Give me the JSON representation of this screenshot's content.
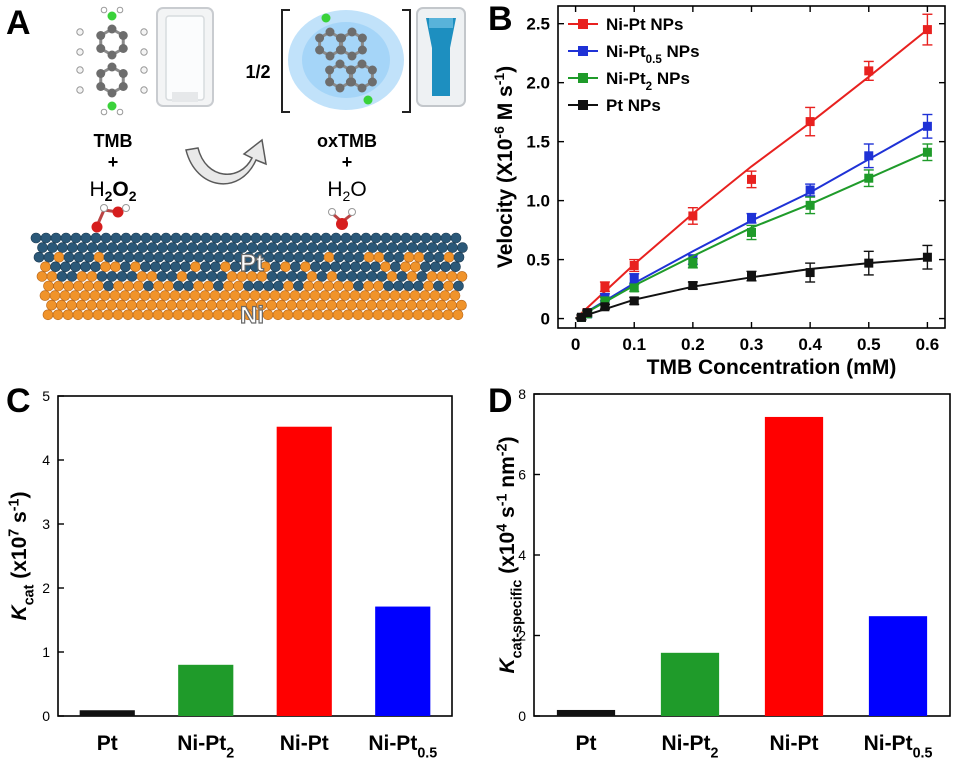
{
  "panels": {
    "A": "A",
    "B": "B",
    "C": "C",
    "D": "D"
  },
  "schematic": {
    "reactant1": "TMB",
    "plus1": "+",
    "reactant2_base": "H",
    "reactant2_sub1": "2",
    "reactant2_mid": "O",
    "reactant2_sub2": "2",
    "product_coef": "1/2",
    "product1": "oxTMB",
    "plus2": "+",
    "product2_base": "H",
    "product2_sub": "2",
    "product2_end": "O",
    "layer_top_label": "Pt",
    "layer_bottom_label": "Ni",
    "colors": {
      "pt_atom": "#2b5878",
      "ni_atom": "#f0932a",
      "glow": "#8ecbf5",
      "cuvette_blue": "#1d8fc0"
    }
  },
  "chart_data": [
    {
      "id": "B",
      "type": "line",
      "xlabel": "TMB Concentration (mM)",
      "ylabel_parts": {
        "a": "Velocity (X10",
        "sup1": "-6",
        "b": " M s",
        "sup2": "-1",
        "c": ")"
      },
      "xlim": [
        -0.03,
        0.63
      ],
      "ylim": [
        -0.08,
        2.65
      ],
      "xticks": [
        0,
        0.1,
        0.2,
        0.3,
        0.4,
        0.5,
        0.6
      ],
      "xtick_labels": [
        "0",
        "0.1",
        "0.2",
        "0.3",
        "0.4",
        "0.5",
        "0.6"
      ],
      "yticks": [
        0,
        0.5,
        1.0,
        1.5,
        2.0,
        2.5
      ],
      "ytick_labels": [
        "0",
        "0.5",
        "1.0",
        "1.5",
        "2.0",
        "2.5"
      ],
      "legend_position": "top-left",
      "series": [
        {
          "name": "Ni-Pt NPs",
          "label_parts": [
            {
              "t": "Ni-Pt NPs"
            }
          ],
          "color": "#e8211f",
          "x": [
            0.01,
            0.02,
            0.05,
            0.1,
            0.2,
            0.3,
            0.4,
            0.5,
            0.6
          ],
          "y": [
            0.01,
            0.05,
            0.27,
            0.45,
            0.87,
            1.18,
            1.67,
            2.1,
            2.45
          ],
          "err": [
            0.02,
            0.03,
            0.04,
            0.05,
            0.07,
            0.07,
            0.12,
            0.08,
            0.13
          ],
          "fit": [
            [
              0,
              0
            ],
            [
              0.1,
              0.46
            ],
            [
              0.2,
              0.89
            ],
            [
              0.3,
              1.29
            ],
            [
              0.4,
              1.66
            ],
            [
              0.5,
              2.05
            ],
            [
              0.6,
              2.45
            ]
          ]
        },
        {
          "name": "Ni-Pt0.5 NPs",
          "label_parts": [
            {
              "t": "Ni-Pt"
            },
            {
              "t": "0.5",
              "sub": true
            },
            {
              "t": " NPs"
            }
          ],
          "color": "#1f32d6",
          "x": [
            0.01,
            0.02,
            0.05,
            0.1,
            0.2,
            0.3,
            0.4,
            0.5,
            0.6
          ],
          "y": [
            0.01,
            0.04,
            0.18,
            0.34,
            0.5,
            0.85,
            1.09,
            1.38,
            1.63
          ],
          "err": [
            0.02,
            0.03,
            0.03,
            0.04,
            0.04,
            0.04,
            0.05,
            0.1,
            0.1
          ],
          "fit": [
            [
              0,
              0
            ],
            [
              0.1,
              0.3
            ],
            [
              0.2,
              0.57
            ],
            [
              0.3,
              0.83
            ],
            [
              0.4,
              1.07
            ],
            [
              0.5,
              1.35
            ],
            [
              0.6,
              1.63
            ]
          ]
        },
        {
          "name": "Ni-Pt2 NPs",
          "label_parts": [
            {
              "t": "Ni-Pt"
            },
            {
              "t": "2",
              "sub": true
            },
            {
              "t": " NPs"
            }
          ],
          "color": "#1f9b2a",
          "x": [
            0.01,
            0.02,
            0.05,
            0.1,
            0.2,
            0.3,
            0.4,
            0.5,
            0.6
          ],
          "y": [
            0.01,
            0.04,
            0.15,
            0.26,
            0.47,
            0.73,
            0.96,
            1.19,
            1.41
          ],
          "err": [
            0.02,
            0.02,
            0.03,
            0.03,
            0.04,
            0.06,
            0.07,
            0.07,
            0.07
          ],
          "fit": [
            [
              0,
              0
            ],
            [
              0.1,
              0.28
            ],
            [
              0.2,
              0.53
            ],
            [
              0.3,
              0.77
            ],
            [
              0.4,
              0.97
            ],
            [
              0.5,
              1.19
            ],
            [
              0.6,
              1.41
            ]
          ]
        },
        {
          "name": "Pt NPs",
          "label_parts": [
            {
              "t": "Pt NPs"
            }
          ],
          "color": "#111111",
          "x": [
            0.01,
            0.02,
            0.05,
            0.1,
            0.2,
            0.3,
            0.4,
            0.5,
            0.6
          ],
          "y": [
            0.01,
            0.05,
            0.1,
            0.15,
            0.28,
            0.36,
            0.39,
            0.47,
            0.52
          ],
          "err": [
            0.02,
            0.02,
            0.02,
            0.03,
            0.03,
            0.04,
            0.08,
            0.1,
            0.1
          ],
          "fit": [
            [
              0,
              0
            ],
            [
              0.1,
              0.16
            ],
            [
              0.2,
              0.27
            ],
            [
              0.3,
              0.35
            ],
            [
              0.4,
              0.42
            ],
            [
              0.5,
              0.47
            ],
            [
              0.6,
              0.51
            ]
          ]
        }
      ]
    },
    {
      "id": "C",
      "type": "bar",
      "categories": [
        "Pt",
        "Ni-Pt2",
        "Ni-Pt",
        "Ni-Pt0.5"
      ],
      "category_parts": [
        [
          {
            "t": "Pt"
          }
        ],
        [
          {
            "t": "Ni-Pt"
          },
          {
            "t": "2",
            "sub": true
          }
        ],
        [
          {
            "t": "Ni-Pt"
          }
        ],
        [
          {
            "t": "Ni-Pt"
          },
          {
            "t": "0.5",
            "sub": true
          }
        ]
      ],
      "values": [
        0.09,
        0.8,
        4.52,
        1.71
      ],
      "colors": [
        "#111111",
        "#1f9b2a",
        "#ff0000",
        "#0000ff"
      ],
      "ylim": [
        0,
        5
      ],
      "yticks": [
        0,
        1,
        2,
        3,
        4,
        5
      ],
      "ytick_labels": [
        "0",
        "1",
        "2",
        "3",
        "4",
        "5"
      ],
      "ylabel_parts": [
        {
          "t": "K",
          "italic": true
        },
        {
          "t": "cat",
          "sub": true
        },
        {
          "t": " (x10"
        },
        {
          "t": "7",
          "sup": true
        },
        {
          "t": " s"
        },
        {
          "t": "-1",
          "sup": true
        },
        {
          "t": ")"
        }
      ]
    },
    {
      "id": "D",
      "type": "bar",
      "categories": [
        "Pt",
        "Ni-Pt2",
        "Ni-Pt",
        "Ni-Pt0.5"
      ],
      "category_parts": [
        [
          {
            "t": "Pt"
          }
        ],
        [
          {
            "t": "Ni-Pt"
          },
          {
            "t": "2",
            "sub": true
          }
        ],
        [
          {
            "t": "Ni-Pt"
          }
        ],
        [
          {
            "t": "Ni-Pt"
          },
          {
            "t": "0.5",
            "sub": true
          }
        ]
      ],
      "values": [
        0.15,
        1.57,
        7.43,
        2.48
      ],
      "colors": [
        "#111111",
        "#1f9b2a",
        "#ff0000",
        "#0000ff"
      ],
      "ylim": [
        0,
        8
      ],
      "yticks": [
        0,
        2,
        4,
        6,
        8
      ],
      "ytick_labels": [
        "0",
        "2",
        "4",
        "6",
        "8"
      ],
      "ylabel_parts": [
        {
          "t": "K",
          "italic": true
        },
        {
          "t": "cat-specific",
          "sub": true
        },
        {
          "t": " (x10"
        },
        {
          "t": "4",
          "sup": true
        },
        {
          "t": " s"
        },
        {
          "t": "-1",
          "sup": true
        },
        {
          "t": " nm"
        },
        {
          "t": "-2",
          "sup": true
        },
        {
          "t": ")"
        }
      ]
    }
  ]
}
